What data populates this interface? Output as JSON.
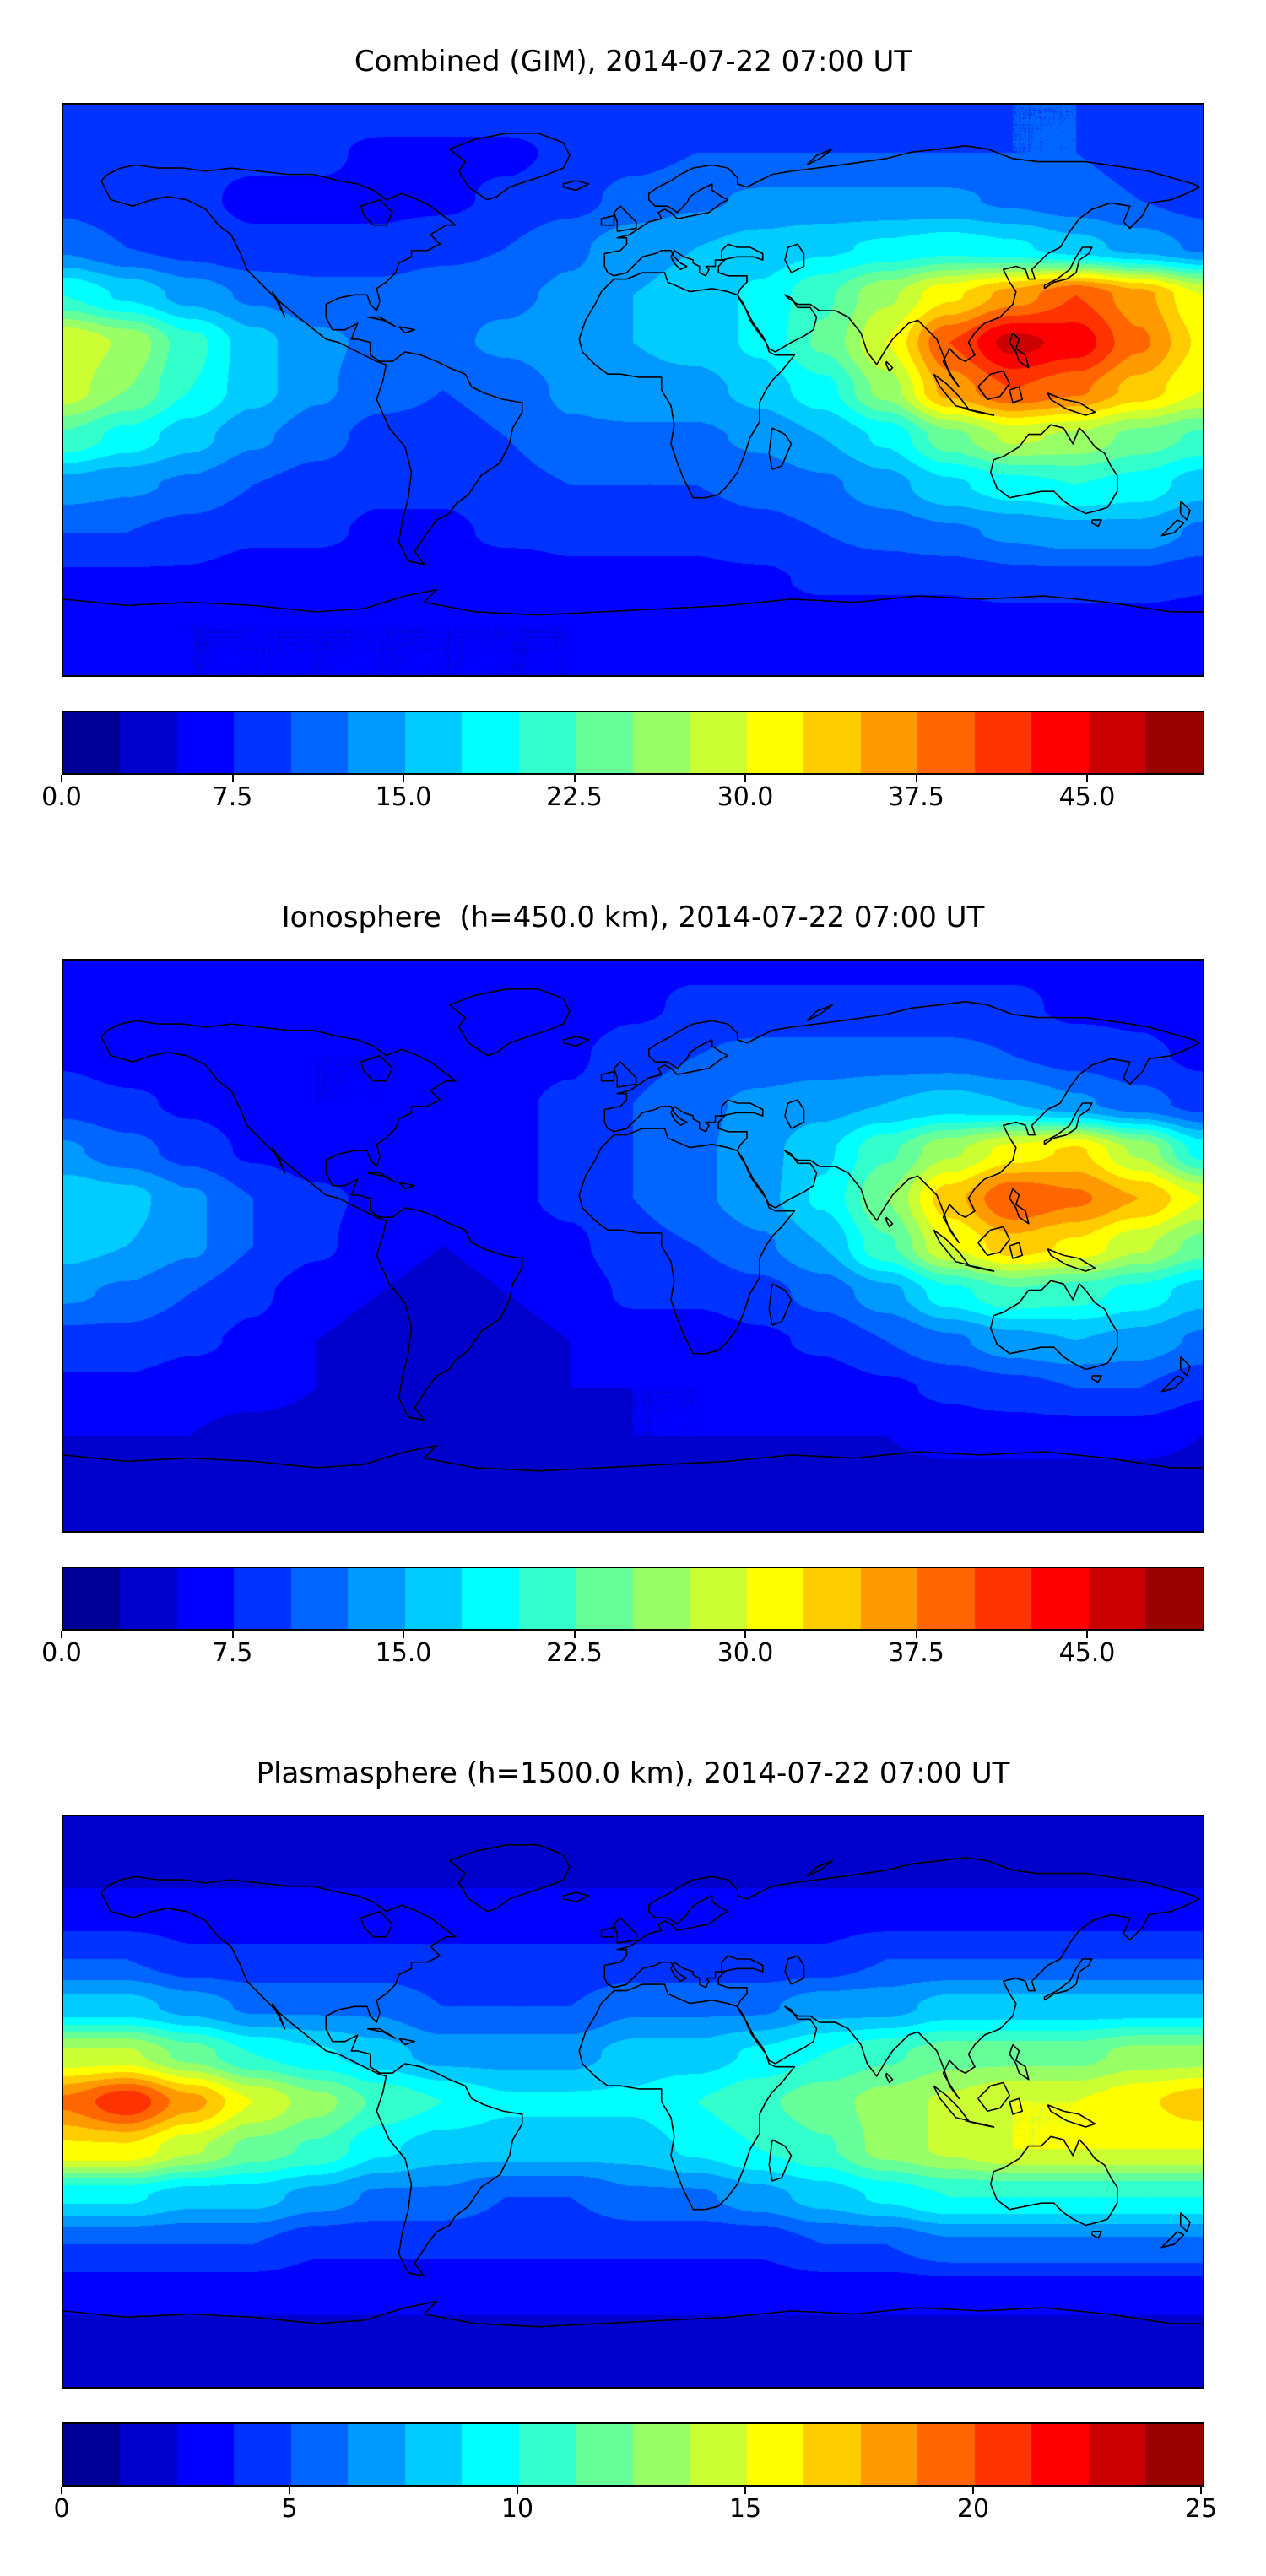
{
  "style": {
    "background": "#ffffff",
    "coastline_color": "#000000",
    "text_color": "#000000",
    "frame_color": "#000000",
    "colormap": "jet"
  },
  "chart_data": [
    {
      "type": "heatmap",
      "title": "Combined (GIM), 2014-07-22 07:00 UT",
      "colormap": "jet",
      "projection": "equirectangular",
      "xlim": [
        -180,
        180
      ],
      "ylim": [
        -90,
        90
      ],
      "levels": {
        "min": 0,
        "max": 50,
        "step": 2.5
      },
      "colorbar_ticks": [
        "0.0",
        "7.5",
        "15.0",
        "22.5",
        "30.0",
        "37.5",
        "45.0"
      ],
      "tick_values": [
        0,
        7.5,
        15,
        22.5,
        30,
        37.5,
        45
      ],
      "lon": [
        -180,
        -160,
        -140,
        -120,
        -100,
        -80,
        -60,
        -40,
        -20,
        0,
        20,
        40,
        60,
        80,
        100,
        120,
        140,
        160,
        180
      ],
      "lat": [
        90,
        75,
        60,
        45,
        30,
        15,
        0,
        -15,
        -30,
        -45,
        -60,
        -75,
        -90
      ],
      "values": [
        [
          9,
          9,
          9,
          9,
          9,
          9,
          9,
          9,
          9,
          9,
          9,
          9,
          9,
          9,
          9,
          10,
          10,
          9,
          9
        ],
        [
          8,
          8,
          8,
          8,
          8,
          7,
          7,
          7,
          8,
          9,
          10,
          10,
          10,
          10,
          10,
          10,
          10,
          9,
          8
        ],
        [
          9,
          8,
          8,
          7,
          7,
          7,
          7,
          8,
          9,
          11,
          12,
          13,
          13,
          13,
          13,
          12,
          11,
          10,
          9
        ],
        [
          12,
          10,
          9,
          8,
          8,
          8,
          9,
          10,
          12,
          14,
          15,
          16,
          17,
          18,
          19,
          18,
          16,
          14,
          12
        ],
        [
          20,
          17,
          14,
          12,
          11,
          11,
          12,
          12,
          13,
          15,
          16,
          18,
          22,
          27,
          32,
          36,
          40,
          36,
          30
        ],
        [
          30,
          27,
          21,
          16,
          13,
          12,
          12,
          13,
          14,
          15,
          16,
          18,
          23,
          30,
          40,
          46,
          44,
          38,
          32
        ],
        [
          29,
          25,
          20,
          16,
          13,
          11,
          10,
          11,
          13,
          14,
          14,
          16,
          19,
          26,
          36,
          40,
          38,
          34,
          30
        ],
        [
          22,
          19,
          16,
          13,
          11,
          9,
          9,
          10,
          12,
          12,
          12,
          13,
          15,
          18,
          24,
          28,
          27,
          24,
          22
        ],
        [
          14,
          13,
          12,
          10,
          9,
          8,
          8,
          9,
          10,
          10,
          10,
          11,
          12,
          14,
          17,
          19,
          20,
          19,
          16
        ],
        [
          10,
          10,
          9,
          8,
          8,
          7,
          7,
          8,
          8,
          8,
          8,
          9,
          10,
          11,
          12,
          13,
          14,
          14,
          12
        ],
        [
          7,
          7,
          7,
          6,
          6,
          6,
          6,
          6,
          7,
          7,
          7,
          7,
          8,
          8,
          8,
          9,
          9,
          9,
          8
        ],
        [
          6,
          6,
          5,
          5,
          5,
          5,
          5,
          5,
          5,
          6,
          6,
          6,
          6,
          6,
          6,
          6,
          6,
          6,
          6
        ],
        [
          5,
          5,
          5,
          5,
          5,
          5,
          5,
          5,
          5,
          5,
          5,
          5,
          5,
          5,
          5,
          5,
          5,
          5,
          5
        ]
      ]
    },
    {
      "type": "heatmap",
      "title": "Ionosphere  (h=450.0 km), 2014-07-22 07:00 UT",
      "colormap": "jet",
      "projection": "equirectangular",
      "xlim": [
        -180,
        180
      ],
      "ylim": [
        -90,
        90
      ],
      "levels": {
        "min": 0,
        "max": 50,
        "step": 2.5
      },
      "colorbar_ticks": [
        "0.0",
        "7.5",
        "15.0",
        "22.5",
        "30.0",
        "37.5",
        "45.0"
      ],
      "tick_values": [
        0,
        7.5,
        15,
        22.5,
        30,
        37.5,
        45
      ],
      "lon": [
        -180,
        -160,
        -140,
        -120,
        -100,
        -80,
        -60,
        -40,
        -20,
        0,
        20,
        40,
        60,
        80,
        100,
        120,
        140,
        160,
        180
      ],
      "lat": [
        90,
        75,
        60,
        45,
        30,
        15,
        0,
        -15,
        -30,
        -45,
        -60,
        -75,
        -90
      ],
      "values": [
        [
          7,
          7,
          7,
          7,
          7,
          7,
          7,
          7,
          7,
          7,
          7,
          7,
          7,
          7,
          7,
          7,
          7,
          7,
          7
        ],
        [
          6,
          6,
          6,
          6,
          6,
          6,
          6,
          6,
          6,
          7,
          8,
          8,
          8,
          8,
          8,
          8,
          7,
          7,
          6
        ],
        [
          7,
          6,
          6,
          5,
          5,
          5,
          5,
          6,
          7,
          9,
          10,
          11,
          11,
          11,
          11,
          10,
          9,
          8,
          7
        ],
        [
          9,
          8,
          7,
          6,
          5,
          5,
          6,
          7,
          8,
          10,
          12,
          13,
          14,
          15,
          16,
          15,
          13,
          11,
          9
        ],
        [
          13,
          11,
          9,
          7,
          6,
          6,
          6,
          7,
          8,
          10,
          12,
          14,
          17,
          22,
          27,
          31,
          33,
          27,
          19
        ],
        [
          17,
          16,
          13,
          10,
          8,
          7,
          7,
          7,
          8,
          10,
          12,
          14,
          18,
          25,
          34,
          40,
          38,
          35,
          30
        ],
        [
          16,
          15,
          13,
          10,
          8,
          6,
          5,
          6,
          7,
          9,
          10,
          12,
          15,
          22,
          30,
          34,
          32,
          28,
          24
        ],
        [
          13,
          12,
          10,
          8,
          6,
          5,
          4,
          5,
          6,
          8,
          8,
          9,
          11,
          14,
          19,
          22,
          21,
          19,
          16
        ],
        [
          9,
          9,
          8,
          7,
          5,
          4,
          4,
          4,
          5,
          6,
          6,
          7,
          8,
          10,
          12,
          14,
          15,
          14,
          12
        ],
        [
          7,
          7,
          6,
          6,
          5,
          4,
          4,
          4,
          5,
          5,
          5,
          6,
          6,
          7,
          8,
          9,
          10,
          10,
          8
        ],
        [
          5,
          5,
          5,
          4,
          4,
          4,
          4,
          4,
          4,
          5,
          5,
          5,
          5,
          5,
          6,
          6,
          6,
          6,
          5
        ],
        [
          4,
          4,
          4,
          4,
          4,
          4,
          4,
          4,
          4,
          4,
          4,
          4,
          4,
          4,
          4,
          4,
          4,
          4,
          4
        ],
        [
          4,
          4,
          4,
          4,
          4,
          4,
          4,
          4,
          4,
          4,
          4,
          4,
          4,
          4,
          4,
          4,
          4,
          4,
          4
        ]
      ]
    },
    {
      "type": "heatmap",
      "title": "Plasmasphere (h=1500.0 km), 2014-07-22 07:00 UT",
      "colormap": "jet",
      "projection": "equirectangular",
      "xlim": [
        -180,
        180
      ],
      "ylim": [
        -90,
        90
      ],
      "levels": {
        "min": 0,
        "max": 25,
        "step": 1.25
      },
      "colorbar_ticks": [
        "0",
        "5",
        "10",
        "15",
        "20",
        "25"
      ],
      "tick_values": [
        0,
        5,
        10,
        15,
        20,
        25
      ],
      "lon": [
        -180,
        -160,
        -140,
        -120,
        -100,
        -80,
        -60,
        -40,
        -20,
        0,
        20,
        40,
        60,
        80,
        100,
        120,
        140,
        160,
        180
      ],
      "lat": [
        90,
        75,
        60,
        45,
        30,
        15,
        0,
        -15,
        -30,
        -45,
        -60,
        -75,
        -90
      ],
      "values": [
        [
          2,
          2,
          2,
          2,
          2,
          2,
          2,
          2,
          2,
          2,
          2,
          2,
          2,
          2,
          2,
          2,
          2,
          2,
          2
        ],
        [
          2,
          2,
          2,
          2,
          2,
          2,
          2,
          2,
          2,
          2,
          2,
          2,
          2,
          2,
          2,
          2,
          2,
          2,
          2
        ],
        [
          3,
          3,
          3,
          3,
          3,
          3,
          3,
          3,
          3,
          3,
          3,
          3,
          3,
          3,
          3,
          3,
          3,
          3,
          3
        ],
        [
          5,
          5,
          4,
          4,
          4,
          4,
          4,
          4,
          4,
          4,
          4,
          4,
          4,
          5,
          5,
          5,
          5,
          5,
          5
        ],
        [
          8,
          8,
          7,
          6,
          6,
          6,
          5,
          5,
          5,
          6,
          6,
          6,
          7,
          7,
          8,
          8,
          8,
          8,
          8
        ],
        [
          14,
          14,
          12,
          10,
          9,
          8,
          7,
          7,
          7,
          8,
          8,
          9,
          10,
          11,
          12,
          12,
          12,
          13,
          13
        ],
        [
          19,
          21,
          18,
          15,
          13,
          11,
          10,
          9,
          9,
          9,
          10,
          11,
          12,
          13,
          14,
          15,
          15,
          16,
          17
        ],
        [
          16,
          16,
          14,
          12,
          11,
          9,
          8,
          8,
          8,
          8,
          9,
          10,
          11,
          13,
          14,
          15,
          15,
          15,
          15
        ],
        [
          9,
          9,
          8,
          8,
          7,
          6,
          6,
          5,
          5,
          6,
          6,
          7,
          8,
          9,
          10,
          10,
          10,
          10,
          10
        ],
        [
          5,
          5,
          5,
          5,
          4,
          4,
          4,
          4,
          4,
          4,
          4,
          4,
          5,
          5,
          6,
          6,
          6,
          6,
          6
        ],
        [
          3,
          3,
          3,
          3,
          3,
          3,
          3,
          3,
          3,
          3,
          3,
          3,
          3,
          3,
          3,
          3,
          3,
          3,
          3
        ],
        [
          2,
          2,
          2,
          2,
          2,
          2,
          2,
          2,
          2,
          2,
          2,
          2,
          2,
          2,
          2,
          2,
          2,
          2,
          2
        ],
        [
          2,
          2,
          2,
          2,
          2,
          2,
          2,
          2,
          2,
          2,
          2,
          2,
          2,
          2,
          2,
          2,
          2,
          2,
          2
        ]
      ]
    }
  ]
}
